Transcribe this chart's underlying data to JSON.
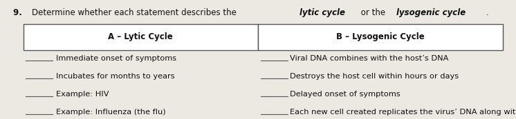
{
  "question_num": "9.  ",
  "question_text": "Determine whether each statement describes the ",
  "question_italic1": "lytic cycle",
  "question_middle": " or the ",
  "question_italic2": "lysogenic cycle",
  "question_end": ".",
  "col_a_label": "A – Lytic Cycle",
  "col_b_label": "B – Lysogenic Cycle",
  "left_items": [
    "Immediate onset of symptoms",
    "Incubates for months to years",
    "Example: HIV",
    "Example: Influenza (the flu)"
  ],
  "right_items": [
    "Viral DNA combines with the host’s DNA",
    "Destroys the host cell within hours or days",
    "Delayed onset of symptoms",
    "Each new cell created replicates the virus’ DNA along with its own"
  ],
  "bg_color": "#ece9e3",
  "box_color": "#ffffff",
  "text_color": "#111111",
  "line_color": "#555555",
  "header_fontsize": 8.5,
  "item_fontsize": 8.2,
  "question_fontsize": 8.5
}
